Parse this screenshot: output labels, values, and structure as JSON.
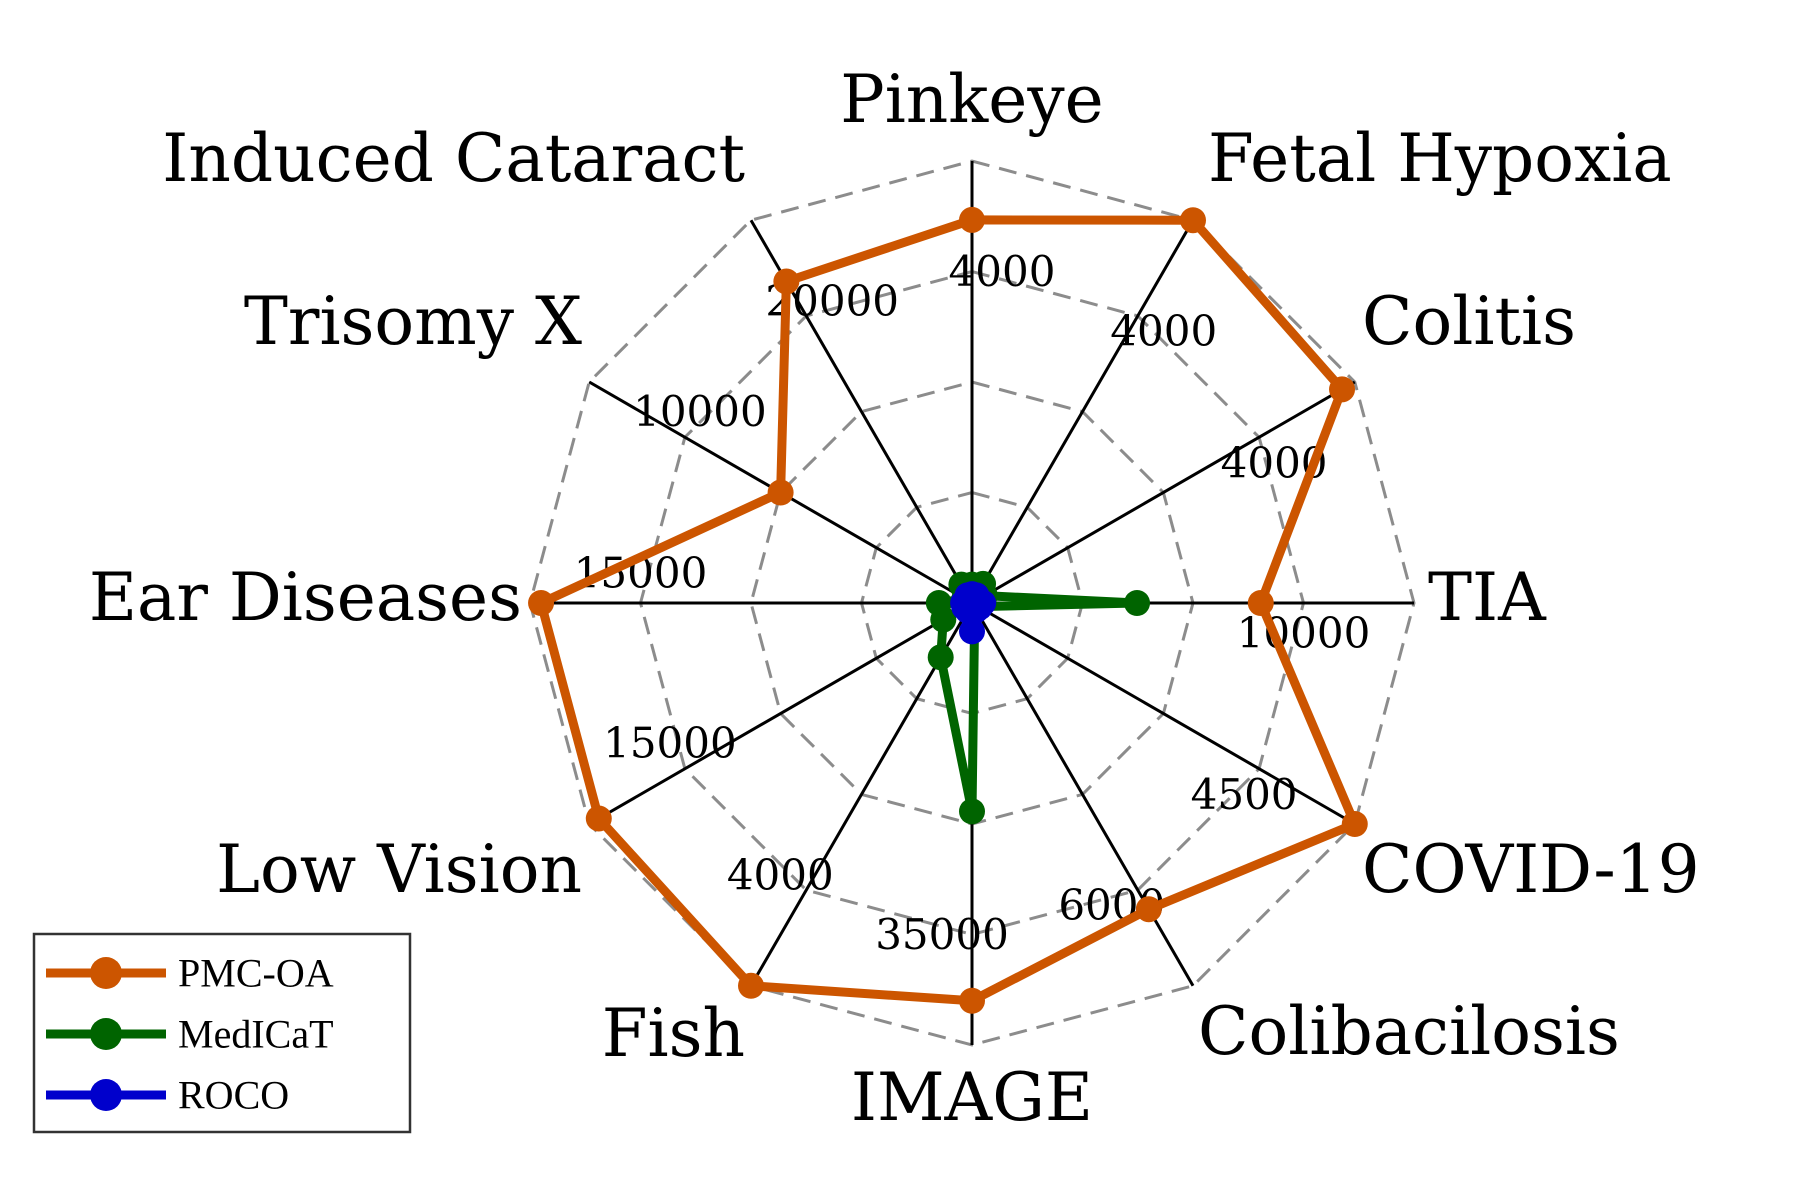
{
  "chart_data": {
    "type": "radar",
    "title": "",
    "grid": true,
    "legend_position": "bottom-left",
    "categories": [
      "Pinkeye",
      "Fetal Hypoxia",
      "Colitis",
      "TIA",
      "COVID-19",
      "Colibacilosis",
      "IMAGE",
      "Fish",
      "Low Vision",
      "Ear Diseases",
      "Trisomy X",
      "Induced Cataract"
    ],
    "axis_ticks": [
      {
        "category": "Pinkeye",
        "tick": "4000"
      },
      {
        "category": "Fetal Hypoxia",
        "tick": "4000"
      },
      {
        "category": "Colitis",
        "tick": "4000"
      },
      {
        "category": "TIA",
        "tick": "10000"
      },
      {
        "category": "COVID-19",
        "tick": "4500"
      },
      {
        "category": "Colibacilosis",
        "tick": "6000"
      },
      {
        "category": "IMAGE",
        "tick": "35000"
      },
      {
        "category": "Fish",
        "tick": "4000"
      },
      {
        "category": "Low Vision",
        "tick": "15000"
      },
      {
        "category": "Ear Diseases",
        "tick": "15000"
      },
      {
        "category": "Trisomy X",
        "tick": "10000"
      },
      {
        "category": "Induced Cataract",
        "tick": "20000"
      }
    ],
    "axis_max": [
      6000,
      6000,
      6000,
      15000,
      6000,
      8000,
      70000,
      6000,
      20000,
      20000,
      20000,
      25000
    ],
    "series": [
      {
        "name": "PMC-OA",
        "color": "#cc5500",
        "values": [
          5200,
          6000,
          5800,
          9800,
          6000,
          6400,
          63000,
          6000,
          19500,
          19500,
          10000,
          21000
        ]
      },
      {
        "name": "MedICaT",
        "color": "#006400",
        "values": [
          250,
          300,
          200,
          5600,
          100,
          100,
          33000,
          850,
          1500,
          1500,
          400,
          1200
        ]
      },
      {
        "name": "ROCO",
        "color": "#0000cc",
        "values": [
          120,
          120,
          100,
          380,
          120,
          150,
          4500,
          120,
          400,
          400,
          200,
          500
        ]
      }
    ]
  }
}
